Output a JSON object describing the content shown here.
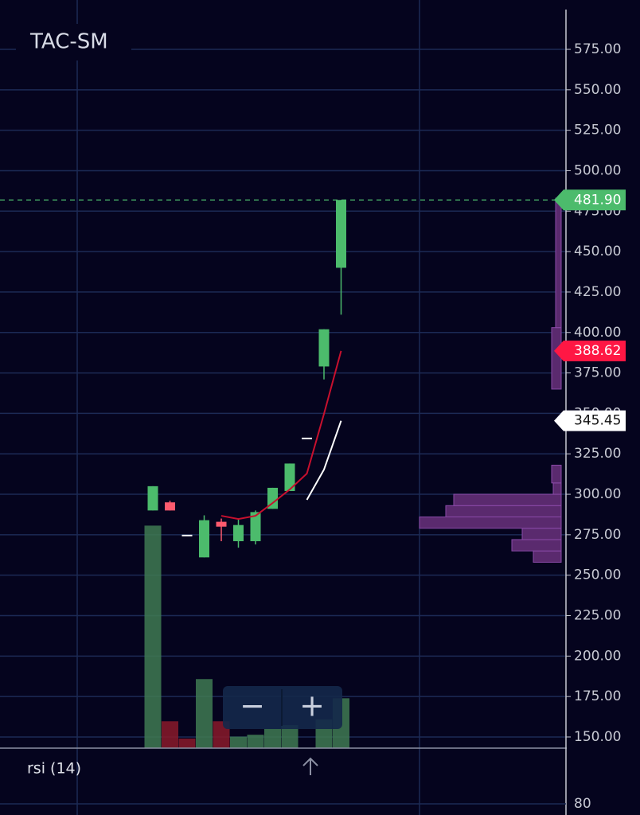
{
  "chart_data": {
    "type": "candlestick",
    "title": "TAC-SM",
    "categories": [
      null,
      null,
      null,
      null,
      null,
      null,
      null,
      null,
      null,
      null,
      null,
      null
    ],
    "open": [
      290,
      295,
      275,
      261,
      283,
      271,
      271,
      291,
      302,
      335,
      379,
      440
    ],
    "high": [
      305,
      296,
      275,
      287,
      285,
      285,
      290,
      304,
      319,
      335,
      402,
      481.9
    ],
    "low": [
      290,
      290,
      275,
      261,
      271,
      267,
      269,
      291,
      302,
      335,
      371,
      411
    ],
    "close": [
      305,
      290,
      275,
      284,
      280,
      281,
      289,
      304,
      319,
      335,
      402,
      481.9
    ],
    "up_color": "#4cbb6c",
    "down_color": "#ff5a6e",
    "flat_color": "#ffffff",
    "ylim": [
      143.1,
      605.5
    ],
    "yticks": [
      {
        "value": 150,
        "label": "150.00"
      },
      {
        "value": 175,
        "label": "175.00"
      },
      {
        "value": 200,
        "label": "200.00"
      },
      {
        "value": 225,
        "label": "225.00"
      },
      {
        "value": 250,
        "label": "250.00"
      },
      {
        "value": 275,
        "label": "275.00"
      },
      {
        "value": 300,
        "label": "300.00"
      },
      {
        "value": 325,
        "label": "325.00"
      },
      {
        "value": 350,
        "label": "350.00"
      },
      {
        "value": 375,
        "label": "375.00"
      },
      {
        "value": 400,
        "label": "400.00"
      },
      {
        "value": 425,
        "label": "425.00"
      },
      {
        "value": 450,
        "label": "450.00"
      },
      {
        "value": 475,
        "label": "475.00"
      },
      {
        "value": 500,
        "label": "500.00"
      },
      {
        "value": 525,
        "label": "525.00"
      },
      {
        "value": 550,
        "label": "550.00"
      },
      {
        "value": 575,
        "label": "575.00"
      }
    ],
    "grid": true,
    "lines": [
      {
        "color": "#c8102e",
        "values": [
          null,
          null,
          null,
          null,
          286.7,
          284.7,
          286.7,
          294.6,
          303,
          312.8,
          349.7,
          388.62
        ]
      },
      {
        "color": "#ffffff",
        "values": [
          null,
          null,
          null,
          null,
          null,
          null,
          null,
          null,
          null,
          296.6,
          315.3,
          345.45
        ]
      }
    ],
    "volume": {
      "values": [
        232,
        28,
        10,
        72,
        28,
        12,
        14,
        20,
        24,
        null,
        30,
        52
      ],
      "colors": [
        "#3f7a52",
        "#8a1a2a",
        "#8a1a2a",
        "#3f7a52",
        "#8a1a2a",
        "#3f7a52",
        "#3f7a52",
        "#3f7a52",
        "#3f7a52",
        null,
        "#3f7a52",
        "#3f7a52"
      ],
      "ylim": [
        0,
        780
      ]
    },
    "volume_profile": {
      "bins": [
        258,
        265,
        272,
        279,
        286,
        293,
        300,
        307,
        318,
        365,
        403,
        483
      ],
      "values": [
        35,
        62,
        49,
        178,
        145,
        135,
        10,
        12,
        0,
        12,
        7
      ],
      "xlim": [
        0,
        180
      ],
      "color": "#5a2a6e"
    },
    "price_labels": [
      {
        "value": 481.9,
        "label": "481.90",
        "color": "#4cbb6c",
        "text_color": "#ffffff"
      },
      {
        "value": 388.62,
        "label": "388.62",
        "color": "#ff1744",
        "text_color": "#ffffff"
      },
      {
        "value": 345.45,
        "label": "345.45",
        "color": "#ffffff",
        "text_color": "#111111"
      }
    ],
    "last_price_line": 481.9,
    "rsi": {
      "label": "rsi (14)",
      "ylim": [
        76,
        100
      ],
      "yticks": [
        80
      ]
    }
  },
  "controls": {
    "zoom_out": "−",
    "zoom_in": "+"
  }
}
